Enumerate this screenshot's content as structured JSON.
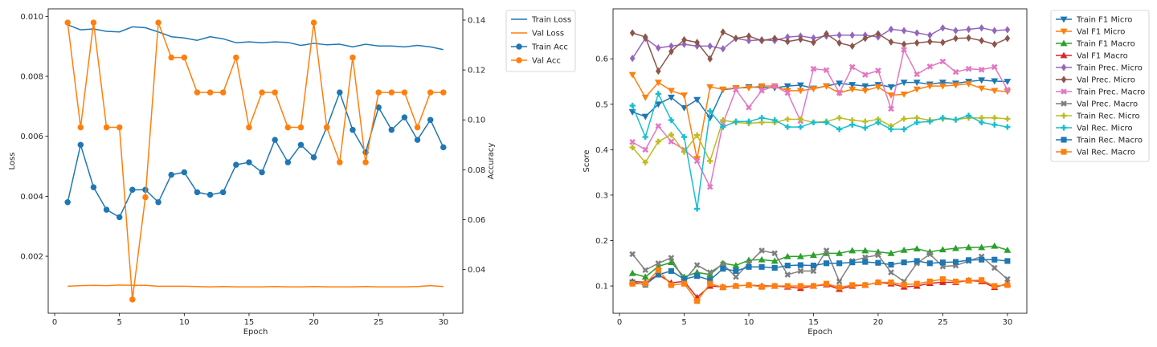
{
  "chart_data": [
    {
      "type": "line",
      "xlabel": "Epoch",
      "ylabel": "Loss",
      "y2label": "Accuracy",
      "xlim": [
        -0.5,
        31.5
      ],
      "ylim": [
        0.0001,
        0.01025
      ],
      "y2lim": [
        0.0225,
        0.1445
      ],
      "xticks": [
        "0",
        "5",
        "10",
        "15",
        "20",
        "25",
        "30"
      ],
      "yticks": [
        "0.002",
        "0.004",
        "0.006",
        "0.008",
        "0.010"
      ],
      "y2ticks": [
        "0.04",
        "0.06",
        "0.08",
        "0.10",
        "0.12",
        "0.14"
      ],
      "legend_position": "outside-right",
      "x": [
        1,
        2,
        3,
        4,
        5,
        6,
        7,
        8,
        9,
        10,
        11,
        12,
        13,
        14,
        15,
        16,
        17,
        18,
        19,
        20,
        21,
        22,
        23,
        24,
        25,
        26,
        27,
        28,
        29,
        30
      ],
      "series": [
        {
          "name": "Train Loss",
          "axis": "left",
          "marker": "none",
          "color": "#1f77b4",
          "values": [
            0.00972,
            0.00955,
            0.00958,
            0.0095,
            0.00948,
            0.00965,
            0.00962,
            0.00948,
            0.00932,
            0.00928,
            0.0092,
            0.00932,
            0.00925,
            0.00912,
            0.00915,
            0.00912,
            0.00915,
            0.00913,
            0.00903,
            0.0091,
            0.00905,
            0.00907,
            0.00898,
            0.00907,
            0.00901,
            0.00901,
            0.00898,
            0.00903,
            0.00898,
            0.00889
          ]
        },
        {
          "name": "Val Loss",
          "axis": "left",
          "marker": "none",
          "color": "#ff7f0e",
          "values": [
            0.001,
            0.00102,
            0.00103,
            0.00102,
            0.00104,
            0.00103,
            0.00103,
            0.001,
            0.001,
            0.001,
            0.00099,
            0.00098,
            0.00099,
            0.00098,
            0.00098,
            0.00098,
            0.00099,
            0.00098,
            0.00098,
            0.00099,
            0.00098,
            0.00098,
            0.00098,
            0.00099,
            0.00098,
            0.00098,
            0.00098,
            0.00099,
            0.00102,
            0.00099
          ]
        },
        {
          "name": "Train Acc",
          "axis": "right",
          "marker": "circle",
          "color": "#1f77b4",
          "values": [
            0.067,
            0.09,
            0.073,
            0.064,
            0.061,
            0.072,
            0.072,
            0.067,
            0.078,
            0.079,
            0.071,
            0.07,
            0.071,
            0.082,
            0.083,
            0.079,
            0.092,
            0.083,
            0.09,
            0.085,
            0.097,
            0.111,
            0.096,
            0.087,
            0.105,
            0.096,
            0.101,
            0.092,
            0.1,
            0.089
          ]
        },
        {
          "name": "Val Acc",
          "axis": "right",
          "marker": "circle",
          "color": "#ff7f0e",
          "values": [
            0.139,
            0.097,
            0.139,
            0.097,
            0.097,
            0.028,
            0.069,
            0.139,
            0.125,
            0.125,
            0.111,
            0.111,
            0.111,
            0.125,
            0.097,
            0.111,
            0.111,
            0.097,
            0.097,
            0.139,
            0.097,
            0.083,
            0.125,
            0.083,
            0.111,
            0.111,
            0.111,
            0.097,
            0.111,
            0.111
          ]
        }
      ]
    },
    {
      "type": "line",
      "xlabel": "Epoch",
      "ylabel": "Score",
      "xlim": [
        -0.5,
        31.5
      ],
      "ylim": [
        0.04,
        0.71
      ],
      "xticks": [
        "0",
        "5",
        "10",
        "15",
        "20",
        "25",
        "30"
      ],
      "yticks": [
        "0.1",
        "0.2",
        "0.3",
        "0.4",
        "0.5",
        "0.6"
      ],
      "legend_position": "outside-right",
      "x": [
        1,
        2,
        3,
        4,
        5,
        6,
        7,
        8,
        9,
        10,
        11,
        12,
        13,
        14,
        15,
        16,
        17,
        18,
        19,
        20,
        21,
        22,
        23,
        24,
        25,
        26,
        27,
        28,
        29,
        30
      ],
      "series": [
        {
          "name": "Train F1 Micro",
          "marker": "tri-down",
          "color": "#1f77b4",
          "values": [
            0.483,
            0.473,
            0.5,
            0.515,
            0.492,
            0.51,
            0.47,
            0.532,
            0.535,
            0.538,
            0.537,
            0.536,
            0.54,
            0.542,
            0.535,
            0.54,
            0.546,
            0.543,
            0.54,
            0.543,
            0.538,
            0.548,
            0.548,
            0.544,
            0.548,
            0.546,
            0.55,
            0.553,
            0.551,
            0.55
          ]
        },
        {
          "name": "Val F1 Micro",
          "marker": "tri-down",
          "color": "#ff7f0e",
          "values": [
            0.565,
            0.515,
            0.548,
            0.53,
            0.52,
            0.38,
            0.538,
            0.533,
            0.536,
            0.536,
            0.54,
            0.54,
            0.53,
            0.53,
            0.534,
            0.54,
            0.525,
            0.533,
            0.53,
            0.538,
            0.52,
            0.522,
            0.533,
            0.54,
            0.54,
            0.542,
            0.545,
            0.535,
            0.53,
            0.528
          ]
        },
        {
          "name": "Train F1 Macro",
          "marker": "tri-up",
          "color": "#2ca02c",
          "values": [
            0.128,
            0.12,
            0.143,
            0.152,
            0.12,
            0.13,
            0.125,
            0.15,
            0.145,
            0.157,
            0.158,
            0.155,
            0.165,
            0.165,
            0.168,
            0.172,
            0.172,
            0.178,
            0.178,
            0.175,
            0.172,
            0.179,
            0.182,
            0.175,
            0.18,
            0.183,
            0.185,
            0.185,
            0.188,
            0.179
          ]
        },
        {
          "name": "Val F1 Macro",
          "marker": "tri-up",
          "color": "#d62728",
          "values": [
            0.11,
            0.108,
            0.125,
            0.107,
            0.11,
            0.075,
            0.1,
            0.098,
            0.1,
            0.102,
            0.1,
            0.1,
            0.098,
            0.095,
            0.1,
            0.103,
            0.093,
            0.1,
            0.102,
            0.108,
            0.105,
            0.098,
            0.1,
            0.106,
            0.108,
            0.108,
            0.112,
            0.11,
            0.097,
            0.105
          ]
        },
        {
          "name": "Train Prec. Micro",
          "marker": "diamond",
          "color": "#9467bd",
          "values": [
            0.601,
            0.645,
            0.624,
            0.628,
            0.632,
            0.628,
            0.628,
            0.622,
            0.645,
            0.64,
            0.642,
            0.64,
            0.648,
            0.65,
            0.646,
            0.65,
            0.652,
            0.652,
            0.652,
            0.648,
            0.665,
            0.662,
            0.657,
            0.652,
            0.668,
            0.662,
            0.665,
            0.668,
            0.662,
            0.664
          ]
        },
        {
          "name": "Val Prec. Micro",
          "marker": "diamond",
          "color": "#8c564b",
          "values": [
            0.657,
            0.648,
            0.573,
            0.616,
            0.642,
            0.636,
            0.6,
            0.659,
            0.645,
            0.65,
            0.64,
            0.645,
            0.638,
            0.643,
            0.636,
            0.655,
            0.635,
            0.628,
            0.645,
            0.655,
            0.637,
            0.632,
            0.635,
            0.638,
            0.636,
            0.645,
            0.646,
            0.64,
            0.632,
            0.645
          ]
        },
        {
          "name": "Train Prec. Macro",
          "marker": "x",
          "color": "#e377c2",
          "values": [
            0.417,
            0.4,
            0.452,
            0.418,
            0.4,
            0.375,
            0.318,
            0.458,
            0.532,
            0.493,
            0.53,
            0.54,
            0.525,
            0.463,
            0.578,
            0.575,
            0.525,
            0.582,
            0.565,
            0.574,
            0.49,
            0.62,
            0.566,
            0.583,
            0.594,
            0.571,
            0.578,
            0.576,
            0.582,
            0.532
          ]
        },
        {
          "name": "Val Prec. Macro",
          "marker": "x",
          "color": "#7f7f7f",
          "values": [
            0.17,
            0.135,
            0.15,
            0.162,
            0.112,
            0.146,
            0.13,
            0.148,
            0.12,
            0.15,
            0.178,
            0.172,
            0.125,
            0.133,
            0.133,
            0.178,
            0.11,
            0.155,
            0.163,
            0.168,
            0.13,
            0.11,
            0.15,
            0.17,
            0.143,
            0.145,
            0.155,
            0.165,
            0.14,
            0.115
          ]
        },
        {
          "name": "Train Rec. Micro",
          "marker": "plus",
          "color": "#bcbd22",
          "values": [
            0.405,
            0.372,
            0.418,
            0.433,
            0.395,
            0.432,
            0.375,
            0.465,
            0.46,
            0.458,
            0.46,
            0.46,
            0.467,
            0.467,
            0.46,
            0.462,
            0.47,
            0.465,
            0.462,
            0.467,
            0.452,
            0.468,
            0.47,
            0.465,
            0.468,
            0.466,
            0.47,
            0.47,
            0.47,
            0.468
          ]
        },
        {
          "name": "Val Rec. Micro",
          "marker": "plus",
          "color": "#17becf",
          "values": [
            0.497,
            0.428,
            0.523,
            0.465,
            0.428,
            0.27,
            0.485,
            0.45,
            0.462,
            0.462,
            0.47,
            0.465,
            0.45,
            0.45,
            0.46,
            0.46,
            0.445,
            0.455,
            0.448,
            0.46,
            0.445,
            0.445,
            0.46,
            0.462,
            0.47,
            0.466,
            0.475,
            0.46,
            0.455,
            0.45
          ]
        },
        {
          "name": "Train Rec. Macro",
          "marker": "square",
          "color": "#1f77b4",
          "values": [
            0.108,
            0.103,
            0.125,
            0.133,
            0.115,
            0.122,
            0.113,
            0.138,
            0.133,
            0.142,
            0.142,
            0.14,
            0.145,
            0.146,
            0.145,
            0.15,
            0.15,
            0.152,
            0.153,
            0.151,
            0.147,
            0.152,
            0.155,
            0.15,
            0.152,
            0.153,
            0.157,
            0.158,
            0.158,
            0.155
          ]
        },
        {
          "name": "Val Rec. Macro",
          "marker": "square",
          "color": "#ff7f0e",
          "values": [
            0.105,
            0.105,
            0.135,
            0.102,
            0.105,
            0.067,
            0.105,
            0.097,
            0.1,
            0.102,
            0.098,
            0.1,
            0.1,
            0.1,
            0.1,
            0.105,
            0.097,
            0.102,
            0.102,
            0.108,
            0.108,
            0.103,
            0.105,
            0.11,
            0.115,
            0.11,
            0.112,
            0.113,
            0.1,
            0.102
          ]
        }
      ]
    }
  ]
}
